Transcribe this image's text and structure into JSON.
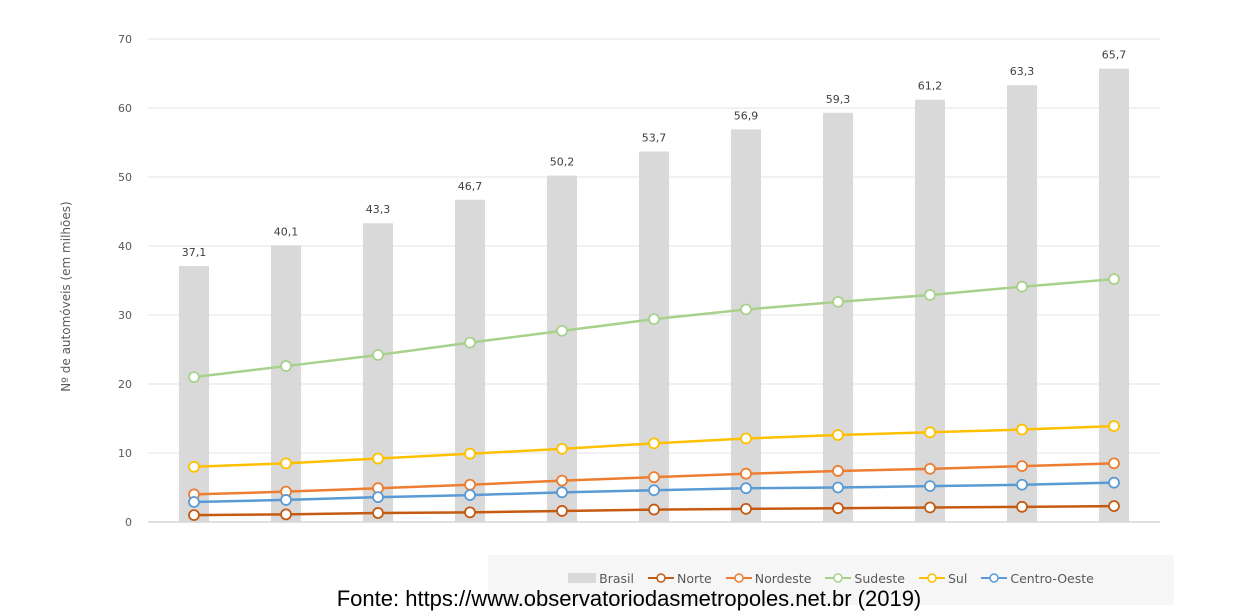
{
  "chart_data": {
    "type": "bar",
    "ylabel": "Nº de automóveis (em milhões)",
    "ylim": [
      0,
      70
    ],
    "yticks": [
      0,
      10,
      20,
      30,
      40,
      50,
      60,
      70
    ],
    "grid": true,
    "legend_position": "bottom-right",
    "categories": [
      "",
      "",
      "",
      "",
      "",
      "",
      "",
      "",
      "",
      "",
      ""
    ],
    "series": [
      {
        "name": "Brasil",
        "type": "bar",
        "color": "#d9d9d9",
        "values": [
          37.1,
          40.1,
          43.3,
          46.7,
          50.2,
          53.7,
          56.9,
          59.3,
          61.2,
          63.3,
          65.7
        ],
        "labels": [
          "37,1",
          "40,1",
          "43,3",
          "46,7",
          "50,2",
          "53,7",
          "56,9",
          "59,3",
          "61,2",
          "63,3",
          "65,7"
        ]
      },
      {
        "name": "Norte",
        "type": "line",
        "color": "#c55a11",
        "values": [
          1.0,
          1.1,
          1.3,
          1.4,
          1.6,
          1.8,
          1.9,
          2.0,
          2.1,
          2.2,
          2.3
        ]
      },
      {
        "name": "Nordeste",
        "type": "line",
        "color": "#ed7d31",
        "values": [
          4.0,
          4.4,
          4.9,
          5.4,
          6.0,
          6.5,
          7.0,
          7.4,
          7.7,
          8.1,
          8.5
        ]
      },
      {
        "name": "Sudeste",
        "type": "line",
        "color": "#a9d18e",
        "values": [
          21.0,
          22.6,
          24.2,
          26.0,
          27.7,
          29.4,
          30.8,
          31.9,
          32.9,
          34.1,
          35.2
        ]
      },
      {
        "name": "Sul",
        "type": "line",
        "color": "#ffc000",
        "values": [
          8.0,
          8.5,
          9.2,
          9.9,
          10.6,
          11.4,
          12.1,
          12.6,
          13.0,
          13.4,
          13.9
        ]
      },
      {
        "name": "Centro-Oeste",
        "type": "line",
        "color": "#5b9bd5",
        "values": [
          2.9,
          3.2,
          3.6,
          3.9,
          4.3,
          4.6,
          4.9,
          5.0,
          5.2,
          5.4,
          5.7
        ]
      }
    ]
  },
  "caption": "Fonte: https://www.observatoriodasmetropoles.net.br (2019)"
}
